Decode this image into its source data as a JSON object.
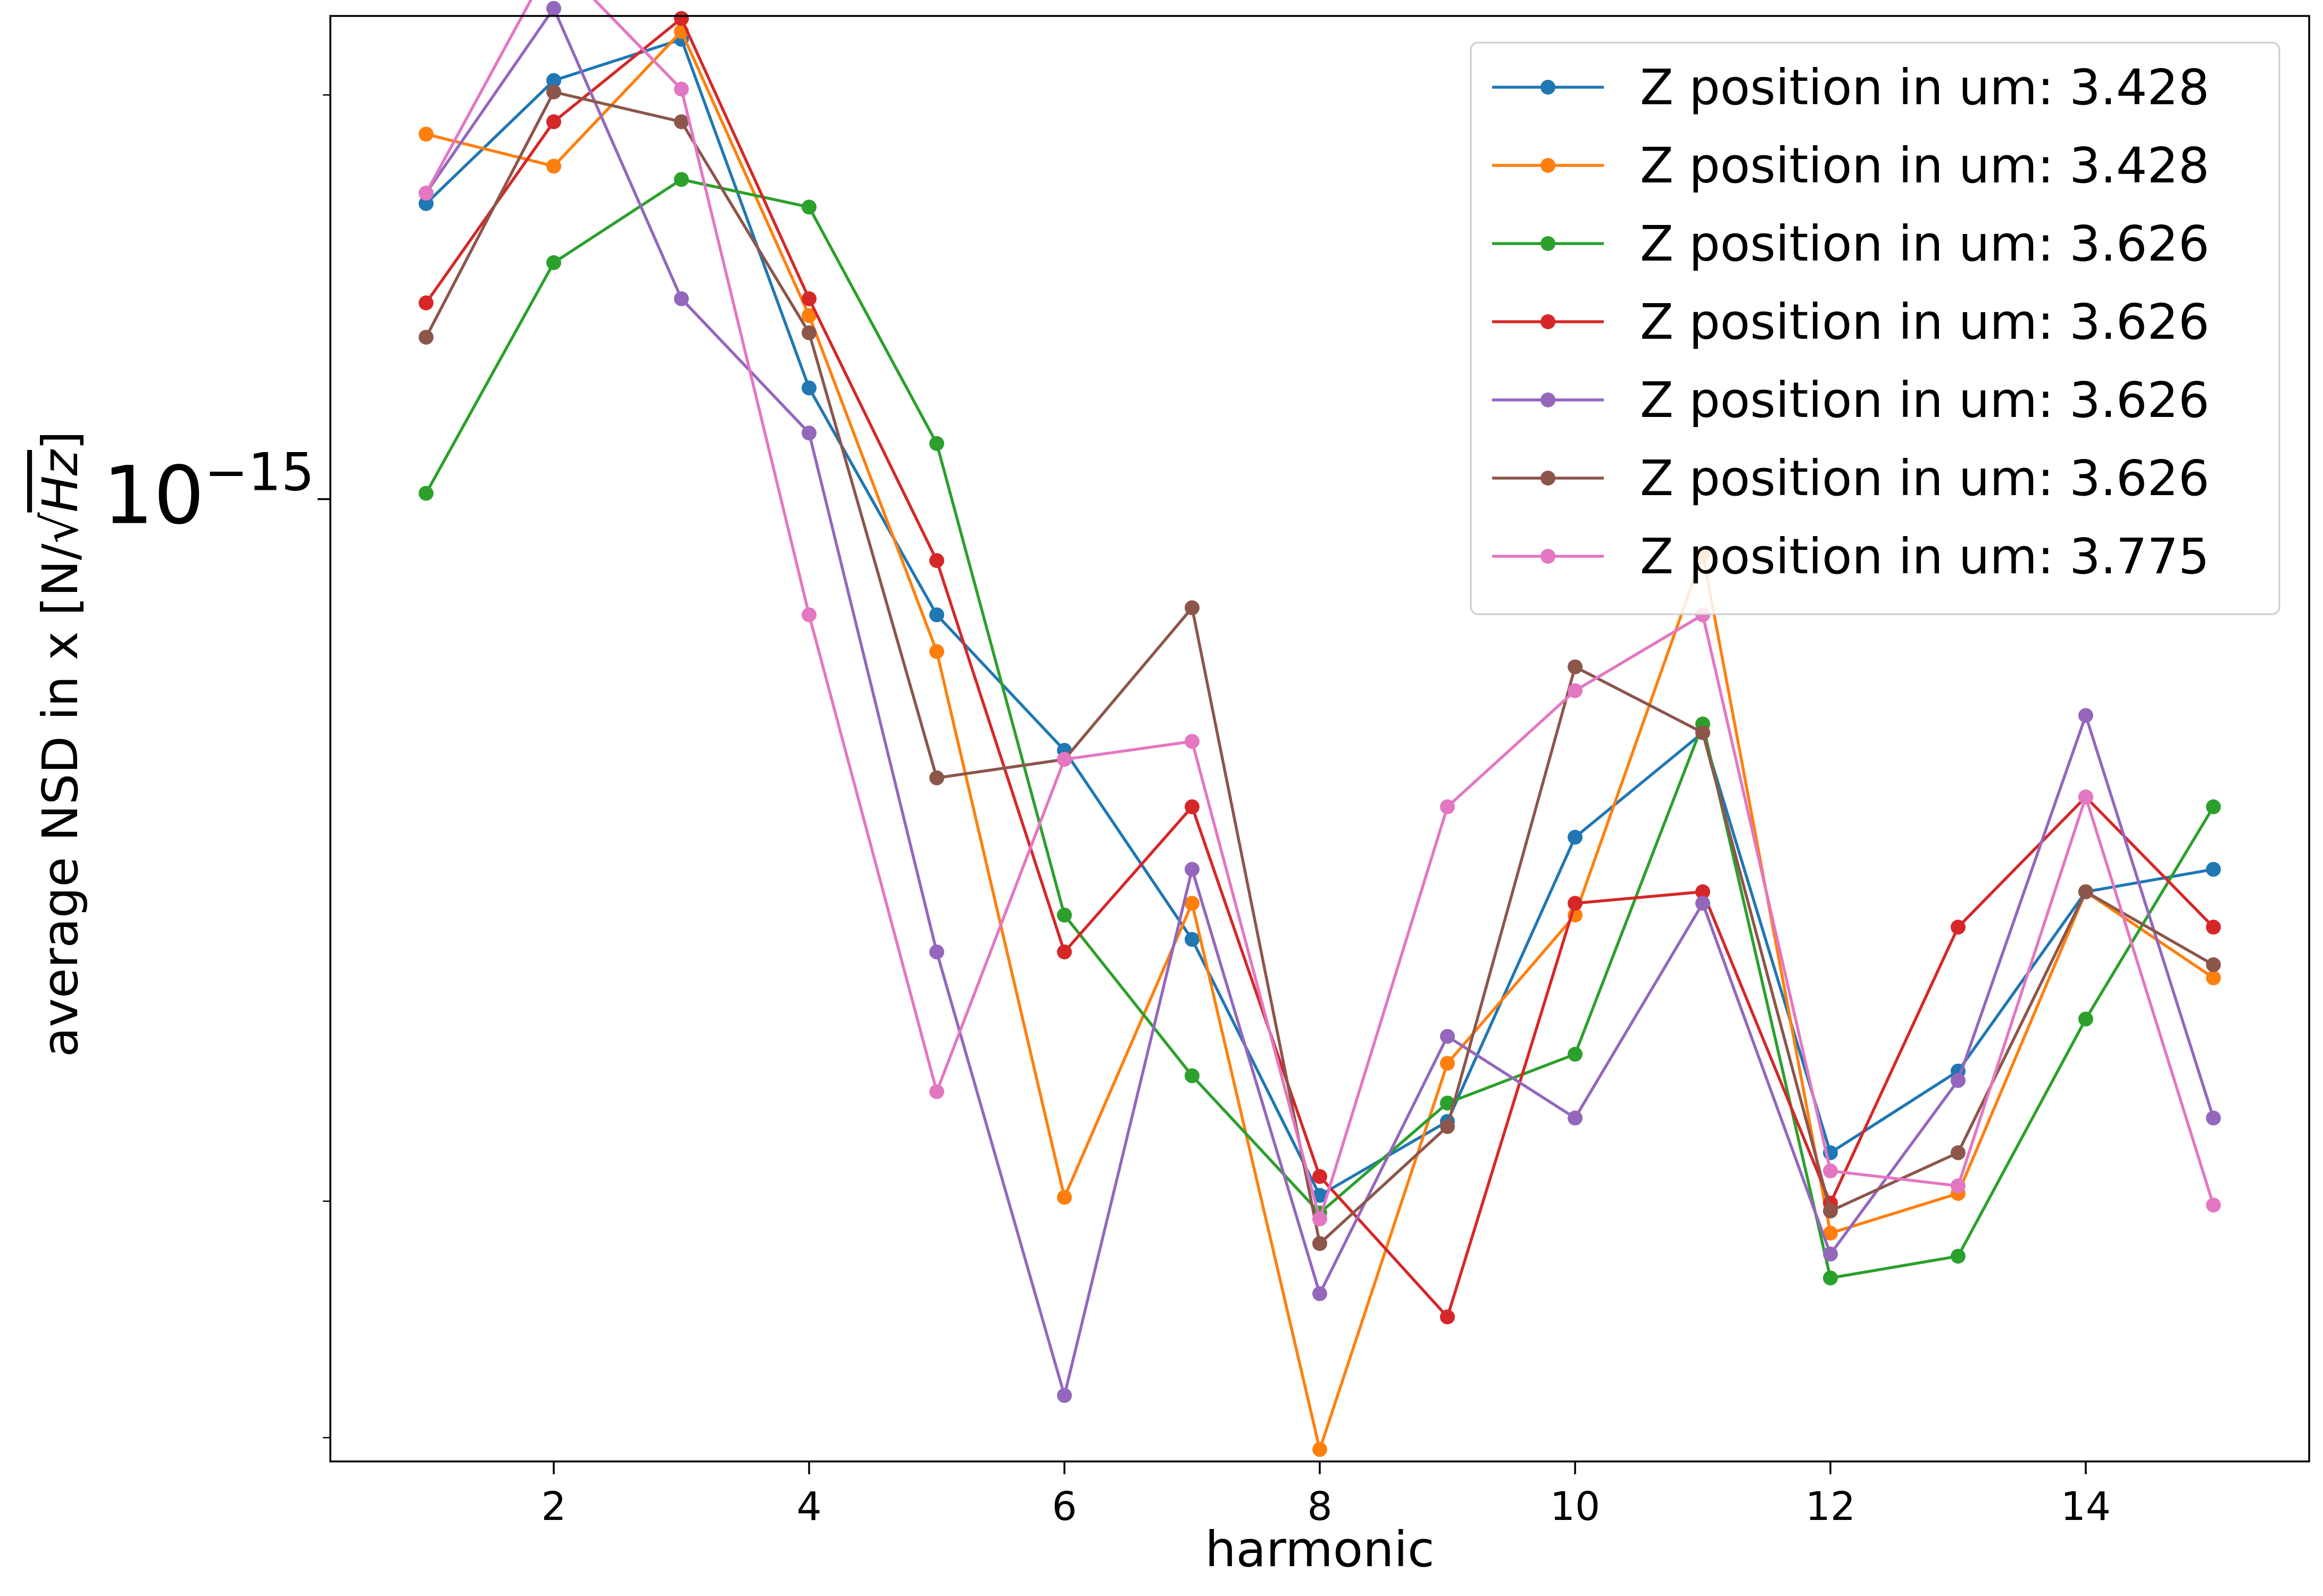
{
  "chart_data": {
    "type": "line",
    "xlabel": "harmonic",
    "ylabel": "average NSD in x [N/√Hz]",
    "ylabel_parts": {
      "prefix": "average NSD in x [N/",
      "sqrt": "√",
      "radicand": "Hz",
      "suffix": "]"
    },
    "yscale": "log",
    "xlim": [
      0.25,
      15.75
    ],
    "ylim": [
      1.92e-16,
      2.29e-15
    ],
    "x_ticks": [
      2,
      4,
      6,
      8,
      10,
      12,
      14
    ],
    "x_tick_labels": [
      "2",
      "4",
      "6",
      "8",
      "10",
      "12",
      "14"
    ],
    "y_major_tick": {
      "value": 1e-15,
      "base": "10",
      "exponent": "−15"
    },
    "y_minor_ticks": [
      2e-16,
      3e-16,
      2e-15
    ],
    "grid": false,
    "legend_position": "top-right",
    "x": [
      1,
      2,
      3,
      4,
      5,
      6,
      7,
      8,
      9,
      10,
      11,
      12,
      13,
      14,
      15
    ],
    "series": [
      {
        "name": "Z position in um: 3.428",
        "color": "#1f77b4",
        "values": [
          1.66e-15,
          2.05e-15,
          2.2e-15,
          1.21e-15,
          8.2e-16,
          6.5e-16,
          4.7e-16,
          3.03e-16,
          3.44e-16,
          5.6e-16,
          6.7e-16,
          3.26e-16,
          3.75e-16,
          5.1e-16,
          5.3e-16
        ]
      },
      {
        "name": "Z position in um: 3.428",
        "color": "#ff7f0e",
        "values": [
          1.87e-15,
          1.77e-15,
          2.23e-15,
          1.37e-15,
          7.7e-16,
          3.02e-16,
          5e-16,
          1.96e-16,
          3.8e-16,
          4.9e-16,
          9.1e-16,
          2.84e-16,
          3.04e-16,
          5.1e-16,
          4.4e-16
        ]
      },
      {
        "name": "Z position in um: 3.626",
        "color": "#2ca02c",
        "values": [
          1.01e-15,
          1.5e-15,
          1.73e-15,
          1.65e-15,
          1.1e-15,
          4.9e-16,
          3.72e-16,
          2.94e-16,
          3.55e-16,
          3.86e-16,
          6.8e-16,
          2.63e-16,
          2.73e-16,
          4.1e-16,
          5.9e-16
        ]
      },
      {
        "name": "Z position in um: 3.626",
        "color": "#d62728",
        "values": [
          1.4e-15,
          1.91e-15,
          2.28e-15,
          1.41e-15,
          9e-16,
          4.6e-16,
          5.9e-16,
          3.13e-16,
          2.46e-16,
          5e-16,
          5.1e-16,
          2.99e-16,
          4.8e-16,
          6e-16,
          4.8e-16
        ]
      },
      {
        "name": "Z position in um: 3.626",
        "color": "#9467bd",
        "values": [
          1.69e-15,
          2.32e-15,
          1.41e-15,
          1.12e-15,
          4.6e-16,
          2.15e-16,
          5.3e-16,
          2.56e-16,
          3.98e-16,
          3.46e-16,
          5e-16,
          2.74e-16,
          3.69e-16,
          6.9e-16,
          3.46e-16
        ]
      },
      {
        "name": "Z position in um: 3.626",
        "color": "#8c564b",
        "values": [
          1.32e-15,
          2.01e-15,
          1.91e-15,
          1.33e-15,
          6.2e-16,
          6.4e-16,
          8.3e-16,
          2.79e-16,
          3.41e-16,
          7.5e-16,
          6.7e-16,
          2.95e-16,
          3.26e-16,
          5.1e-16,
          4.5e-16
        ]
      },
      {
        "name": "Z position in um: 3.775",
        "color": "#e377c2",
        "values": [
          1.69e-15,
          2.53e-15,
          2.02e-15,
          8.2e-16,
          3.62e-16,
          6.4e-16,
          6.6e-16,
          2.91e-16,
          5.9e-16,
          7.2e-16,
          8.2e-16,
          3.16e-16,
          3.08e-16,
          6e-16,
          2.98e-16
        ]
      }
    ]
  }
}
